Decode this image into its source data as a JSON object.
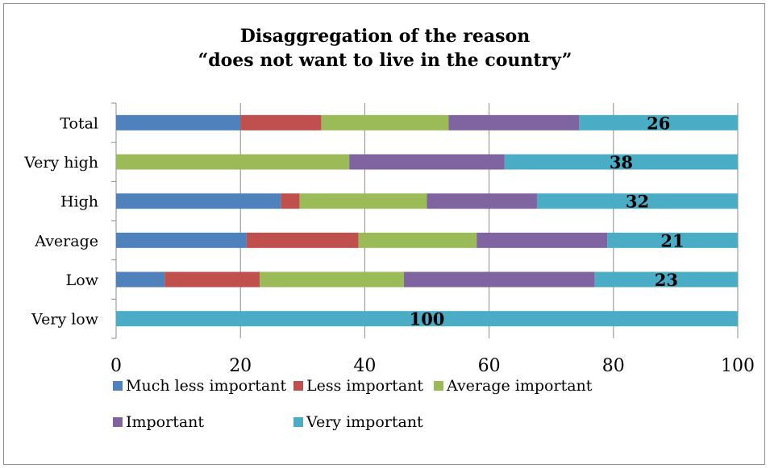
{
  "chart_data": {
    "type": "bar",
    "orientation": "horizontal",
    "stacked": true,
    "title_lines": [
      "Disaggregation of the reason",
      "“does not want to live in the country”"
    ],
    "categories": [
      "Total",
      "Very high",
      "High",
      "Average",
      "Low",
      "Very low"
    ],
    "series": [
      {
        "name": "Much less important",
        "color": "#4f81bd",
        "values": [
          20,
          0,
          26.5,
          21,
          7.8,
          0
        ]
      },
      {
        "name": "Less important",
        "color": "#c0504d",
        "values": [
          13,
          0,
          3,
          18,
          15.3,
          0
        ]
      },
      {
        "name": "Average important",
        "color": "#9bbb59",
        "values": [
          20.5,
          37.5,
          20.5,
          19,
          23.2,
          0
        ]
      },
      {
        "name": "Important",
        "color": "#8064a2",
        "values": [
          21,
          25,
          17.7,
          21,
          30.7,
          0
        ]
      },
      {
        "name": "Very important",
        "color": "#4bacc6",
        "values": [
          25.5,
          37.5,
          32.3,
          21,
          23,
          100
        ]
      }
    ],
    "data_labels": [
      "26",
      "38",
      "32",
      "21",
      "23",
      "100"
    ],
    "xlim": [
      0,
      100
    ],
    "xticks": [
      "0",
      "20",
      "40",
      "60",
      "80",
      "100"
    ],
    "grid": true,
    "legend_position": "bottom"
  }
}
